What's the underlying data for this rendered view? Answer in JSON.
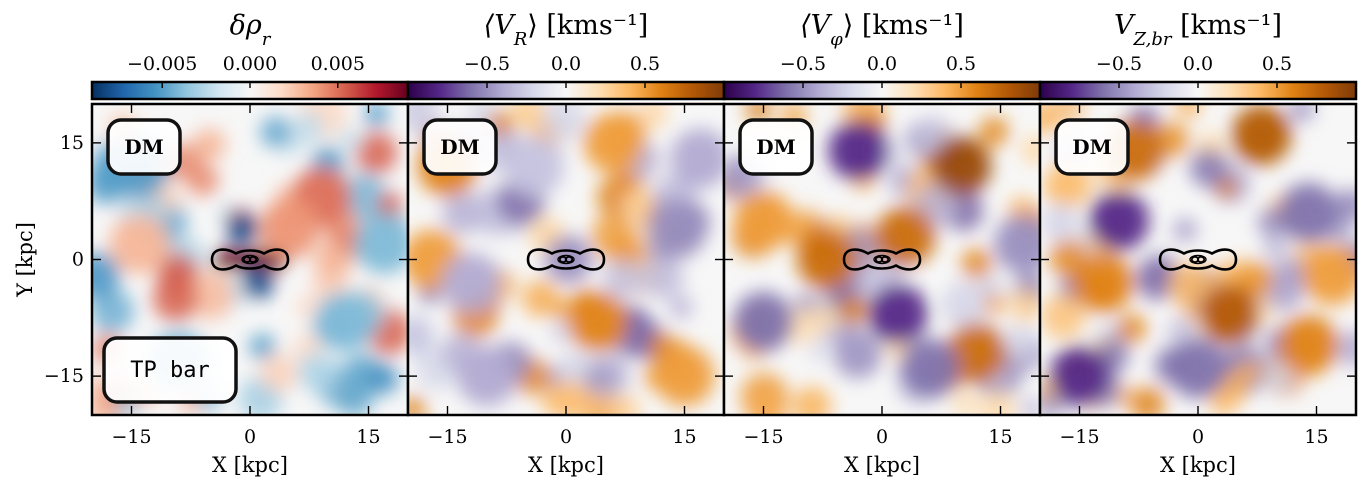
{
  "chart_data": [
    {
      "type": "heatmap",
      "colorbar_label": "δρ_r",
      "colormap": "RdBu_r",
      "colorbar_range": [
        -0.009,
        0.009
      ],
      "colorbar_ticks": [
        -0.005,
        0.0,
        0.005
      ],
      "colorbar_tick_labels": [
        "−0.005",
        "0.000",
        "0.005"
      ],
      "xlabel": "X [kpc]",
      "ylabel": "Y [kpc]",
      "xlim": [
        -20,
        20
      ],
      "ylim": [
        -20,
        20
      ],
      "xticks": [
        "−15",
        "0",
        "15"
      ],
      "yticks": [
        "15",
        "0",
        "−15"
      ],
      "badges": [
        "DM",
        "TP bar"
      ],
      "features": [
        {
          "x": -2,
          "y": 0,
          "value": 0.009
        },
        {
          "x": 2,
          "y": 0,
          "value": 0.009
        },
        {
          "x": -1,
          "y": 4,
          "value": -0.008
        },
        {
          "x": 1,
          "y": -3,
          "value": -0.008
        },
        {
          "x": 9,
          "y": 8,
          "value": 0.005
        },
        {
          "x": -14,
          "y": 12,
          "value": -0.005
        },
        {
          "x": 12,
          "y": -8,
          "value": -0.004
        },
        {
          "x": 5,
          "y": 4,
          "value": 0.004
        },
        {
          "x": -9,
          "y": -13,
          "value": -0.004
        },
        {
          "x": -14,
          "y": 2,
          "value": 0.003
        },
        {
          "x": 17,
          "y": 2,
          "value": -0.004
        }
      ]
    },
    {
      "type": "heatmap",
      "colorbar_label": "⟨V_R⟩ [kms⁻¹]",
      "colormap": "PuOr_r",
      "colorbar_range": [
        -1.0,
        1.0
      ],
      "colorbar_ticks": [
        -0.5,
        0.0,
        0.5
      ],
      "colorbar_tick_labels": [
        "−0.5",
        "0.0",
        "0.5"
      ],
      "xlabel": "X [kpc]",
      "xlim": [
        -20,
        20
      ],
      "ylim": [
        -20,
        20
      ],
      "xticks": [
        "−15",
        "0",
        "15"
      ],
      "badges": [
        "DM"
      ],
      "features": [
        {
          "x": -15,
          "y": 12,
          "value": 0.6
        },
        {
          "x": -17,
          "y": 0,
          "value": 0.5
        },
        {
          "x": 6,
          "y": 15,
          "value": 0.5
        },
        {
          "x": 4,
          "y": -8,
          "value": 0.6
        },
        {
          "x": 15,
          "y": -15,
          "value": 0.5
        },
        {
          "x": -12,
          "y": -3,
          "value": -0.4
        },
        {
          "x": 14,
          "y": 4,
          "value": -0.5
        },
        {
          "x": -4,
          "y": 12,
          "value": -0.3
        },
        {
          "x": -10,
          "y": -15,
          "value": -0.4
        },
        {
          "x": 17,
          "y": 13,
          "value": -0.4
        }
      ]
    },
    {
      "type": "heatmap",
      "colorbar_label": "⟨V_φ⟩ [kms⁻¹]",
      "colormap": "PuOr_r",
      "colorbar_range": [
        -1.0,
        1.0
      ],
      "colorbar_ticks": [
        -0.5,
        0.0,
        0.5
      ],
      "colorbar_tick_labels": [
        "−0.5",
        "0.0",
        "0.5"
      ],
      "xlabel": "X [kpc]",
      "xlim": [
        -20,
        20
      ],
      "ylim": [
        -20,
        20
      ],
      "xticks": [
        "−15",
        "0",
        "15"
      ],
      "badges": [
        "DM"
      ],
      "features": [
        {
          "x": 10,
          "y": 12,
          "value": 0.9
        },
        {
          "x": 3,
          "y": 3,
          "value": 0.7
        },
        {
          "x": -7,
          "y": 0,
          "value": 0.7
        },
        {
          "x": -15,
          "y": 5,
          "value": 0.5
        },
        {
          "x": 12,
          "y": -12,
          "value": 0.7
        },
        {
          "x": -3,
          "y": 14,
          "value": -0.8
        },
        {
          "x": 2,
          "y": -7,
          "value": -0.8
        },
        {
          "x": -15,
          "y": -8,
          "value": -0.6
        },
        {
          "x": 6,
          "y": -14,
          "value": -0.6
        },
        {
          "x": 18,
          "y": 2,
          "value": -0.5
        }
      ]
    },
    {
      "type": "heatmap",
      "colorbar_label": "V_{Z,br} [kms⁻¹]",
      "colormap": "PuOr_r",
      "colorbar_range": [
        -1.0,
        1.0
      ],
      "colorbar_ticks": [
        -0.5,
        0.0,
        0.5
      ],
      "colorbar_tick_labels": [
        "−0.5",
        "0.0",
        "0.5"
      ],
      "xlabel": "X [kpc]",
      "xlim": [
        -20,
        20
      ],
      "ylim": [
        -20,
        20
      ],
      "xticks": [
        "−15",
        "0",
        "15"
      ],
      "badges": [
        "DM"
      ],
      "features": [
        {
          "x": -8,
          "y": 14,
          "value": 0.7
        },
        {
          "x": 8,
          "y": 16,
          "value": 0.8
        },
        {
          "x": 4,
          "y": -7,
          "value": 0.8
        },
        {
          "x": -12,
          "y": -3,
          "value": 0.6
        },
        {
          "x": 14,
          "y": -11,
          "value": 0.6
        },
        {
          "x": -10,
          "y": 5,
          "value": -0.8
        },
        {
          "x": -15,
          "y": -15,
          "value": -0.8
        },
        {
          "x": 14,
          "y": 6,
          "value": -0.6
        },
        {
          "x": 0,
          "y": -14,
          "value": -0.6
        },
        {
          "x": 17,
          "y": -2,
          "value": 0.5
        }
      ]
    }
  ]
}
